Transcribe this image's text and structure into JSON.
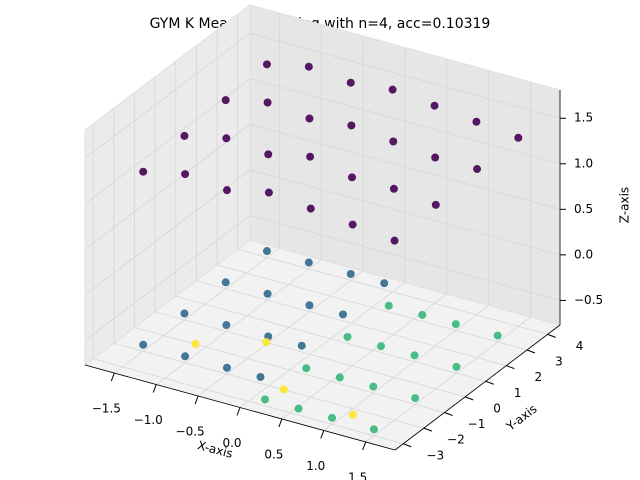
{
  "chart_data": {
    "type": "scatter3d",
    "title": "GYM K Means Clustering with n=4, acc=0.10319",
    "xlabel": "X-axis",
    "ylabel": "Y-axis",
    "zlabel": "Z-axis",
    "xlim": [
      -1.85,
      1.85
    ],
    "ylim": [
      -3.4,
      4.6
    ],
    "zlim": [
      -0.77,
      1.81
    ],
    "xticks": [
      {
        "value": -1.5,
        "label": "−1.5"
      },
      {
        "value": -1,
        "label": "−1.0"
      },
      {
        "value": -0.5,
        "label": "−0.5"
      },
      {
        "value": 0,
        "label": "0.0"
      },
      0.5,
      {
        "value": 1,
        "label": "1.0"
      },
      1.5
    ],
    "yticks": [
      {
        "value": -3,
        "label": "−3"
      },
      {
        "value": -2,
        "label": "−2"
      },
      {
        "value": -1,
        "label": "−1"
      },
      0,
      1,
      2,
      3,
      4
    ],
    "zticks": [
      {
        "value": -0.5,
        "label": "−0.5"
      },
      {
        "value": 0,
        "label": "0.0"
      },
      0.5,
      {
        "value": 1,
        "label": "1.0"
      },
      1.5
    ],
    "grid": true,
    "series": [
      {
        "color": "#440154",
        "x": [
          -1.5,
          -1,
          -0.5,
          0,
          0.5,
          1,
          1.5,
          -1.5,
          -1,
          -0.5,
          0,
          0.5,
          1,
          1.5,
          -1.5,
          -1,
          -0.5,
          0,
          0.5,
          1,
          1.5,
          -1.5,
          -1,
          -0.5,
          0,
          0.5,
          1,
          1.5
        ],
        "y": [
          -2,
          -2,
          -2,
          -2,
          -2,
          -2,
          -2,
          0,
          0,
          0,
          0,
          0,
          0,
          0,
          2,
          2,
          2,
          2,
          2,
          2,
          2,
          4,
          4,
          4,
          4,
          4,
          4,
          4
        ],
        "z": [
          1.2,
          1.3,
          1.25,
          1.35,
          1.3,
          1.25,
          1.2,
          1.25,
          1.35,
          1.3,
          1.4,
          1.3,
          1.3,
          1.25,
          1.3,
          1.4,
          1.35,
          1.4,
          1.35,
          1.3,
          1.3,
          1.35,
          1.45,
          1.4,
          1.45,
          1.4,
          1.35,
          1.3
        ]
      },
      {
        "color": "#31688e",
        "x": [
          -1.5,
          -1,
          -0.5,
          -0.1,
          -1.5,
          -1,
          -0.5,
          -0.1,
          -1.5,
          -1,
          -0.5,
          -0.1,
          -1.5,
          -1,
          -0.5,
          -0.1
        ],
        "y": [
          -2,
          -2,
          -2,
          -2,
          0,
          0,
          0,
          0,
          2,
          2,
          2,
          2,
          4,
          4,
          4,
          4
        ],
        "z": [
          -0.7,
          -0.7,
          -0.7,
          -0.7,
          -0.7,
          -0.7,
          -0.7,
          -0.7,
          -0.7,
          -0.7,
          -0.7,
          -0.7,
          -0.7,
          -0.7,
          -0.7,
          -0.7
        ]
      },
      {
        "color": "#35b779",
        "x": [
          0.2,
          0.6,
          1.0,
          1.5,
          0.2,
          0.6,
          1.0,
          1.5,
          0.2,
          0.6,
          1.0,
          1.5,
          0.2,
          0.6,
          1.0,
          1.5
        ],
        "y": [
          -3,
          -3,
          -3,
          -3,
          -1,
          -1,
          -1,
          -1,
          1,
          1,
          1,
          1,
          3,
          3,
          3,
          3
        ],
        "z": [
          -0.7,
          -0.7,
          -0.7,
          -0.7,
          -0.7,
          -0.7,
          -0.7,
          -0.7,
          -0.7,
          -0.7,
          -0.7,
          -0.7,
          -0.7,
          -0.7,
          -0.7,
          -0.7
        ]
      },
      {
        "color": "#fde725",
        "x": [
          -1.0,
          -0.4,
          0.3,
          1.2
        ],
        "y": [
          -1.5,
          -0.5,
          -2.5,
          -2.8
        ],
        "z": [
          -0.65,
          -0.65,
          -0.65,
          -0.65
        ]
      }
    ]
  }
}
